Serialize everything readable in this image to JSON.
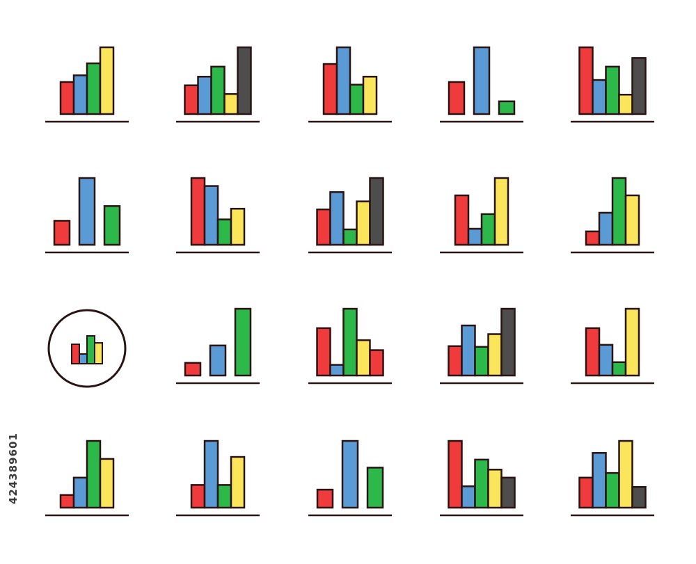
{
  "image_id_label": "424389601",
  "colors": {
    "red": "#ef3b3b",
    "blue": "#5b9bd5",
    "green": "#2db84a",
    "yellow": "#fbe55a",
    "dark": "#4d4d4d",
    "outline": "#2a1313"
  },
  "icons": [
    {
      "name": "icon-bar-chart-1",
      "bars": [
        {
          "c": "red",
          "v": 0.48
        },
        {
          "c": "blue",
          "v": 0.58
        },
        {
          "c": "green",
          "v": 0.76
        },
        {
          "c": "yellow",
          "v": 1.0
        }
      ]
    },
    {
      "name": "icon-bar-chart-2",
      "bars": [
        {
          "c": "red",
          "v": 0.43
        },
        {
          "c": "blue",
          "v": 0.56
        },
        {
          "c": "green",
          "v": 0.71
        },
        {
          "c": "yellow",
          "v": 0.3
        },
        {
          "c": "dark",
          "v": 1.0
        }
      ]
    },
    {
      "name": "icon-bar-chart-3",
      "bars": [
        {
          "c": "red",
          "v": 0.75
        },
        {
          "c": "blue",
          "v": 1.0
        },
        {
          "c": "green",
          "v": 0.44
        },
        {
          "c": "yellow",
          "v": 0.56
        }
      ]
    },
    {
      "name": "icon-bar-chart-4",
      "bars": [
        {
          "c": "red",
          "v": 0.48
        },
        {
          "c": "blue",
          "v": 1.0
        },
        {
          "c": "green",
          "v": 0.19
        }
      ]
    },
    {
      "name": "icon-bar-chart-5",
      "bars": [
        {
          "c": "red",
          "v": 1.0
        },
        {
          "c": "blue",
          "v": 0.51
        },
        {
          "c": "green",
          "v": 0.71
        },
        {
          "c": "yellow",
          "v": 0.29
        },
        {
          "c": "dark",
          "v": 0.84
        }
      ]
    },
    {
      "name": "icon-bar-chart-6",
      "bars": [
        {
          "c": "red",
          "v": 0.36
        },
        {
          "c": "blue",
          "v": 1.0
        },
        {
          "c": "green",
          "v": 0.58
        }
      ]
    },
    {
      "name": "icon-bar-chart-7",
      "bars": [
        {
          "c": "red",
          "v": 1.0
        },
        {
          "c": "blue",
          "v": 0.88
        },
        {
          "c": "green",
          "v": 0.38
        },
        {
          "c": "yellow",
          "v": 0.54
        }
      ]
    },
    {
      "name": "icon-bar-chart-8",
      "bars": [
        {
          "c": "red",
          "v": 0.53
        },
        {
          "c": "blue",
          "v": 0.79
        },
        {
          "c": "green",
          "v": 0.23
        },
        {
          "c": "yellow",
          "v": 0.65
        },
        {
          "c": "dark",
          "v": 1.0
        }
      ]
    },
    {
      "name": "icon-bar-chart-9",
      "bars": [
        {
          "c": "red",
          "v": 0.74
        },
        {
          "c": "blue",
          "v": 0.24
        },
        {
          "c": "green",
          "v": 0.46
        },
        {
          "c": "yellow",
          "v": 1.0
        }
      ]
    },
    {
      "name": "icon-bar-chart-10",
      "bars": [
        {
          "c": "red",
          "v": 0.2
        },
        {
          "c": "blue",
          "v": 0.48
        },
        {
          "c": "green",
          "v": 1.0
        },
        {
          "c": "yellow",
          "v": 0.74
        }
      ]
    },
    {
      "name": "icon-bar-chart-11",
      "circle": true,
      "bars": [
        {
          "c": "red",
          "v": 0.7
        },
        {
          "c": "blue",
          "v": 0.35
        },
        {
          "c": "green",
          "v": 1.0
        },
        {
          "c": "yellow",
          "v": 0.75
        }
      ]
    },
    {
      "name": "icon-bar-chart-12",
      "bars": [
        {
          "c": "red",
          "v": 0.19
        },
        {
          "c": "blue",
          "v": 0.45
        },
        {
          "c": "green",
          "v": 1.0
        }
      ]
    },
    {
      "name": "icon-bar-chart-13",
      "bars": [
        {
          "c": "red",
          "v": 0.71
        },
        {
          "c": "blue",
          "v": 0.16
        },
        {
          "c": "green",
          "v": 1.0
        },
        {
          "c": "yellow",
          "v": 0.53
        },
        {
          "c": "dark",
          "v": 0.0
        },
        {
          "c": "red",
          "v": 0.38
        }
      ]
    },
    {
      "name": "icon-bar-chart-14",
      "bars": [
        {
          "c": "red",
          "v": 0.44
        },
        {
          "c": "blue",
          "v": 0.75
        },
        {
          "c": "green",
          "v": 0.43
        },
        {
          "c": "yellow",
          "v": 0.62
        },
        {
          "c": "dark",
          "v": 1.0
        }
      ]
    },
    {
      "name": "icon-bar-chart-15",
      "bars": [
        {
          "c": "red",
          "v": 0.71
        },
        {
          "c": "blue",
          "v": 0.46
        },
        {
          "c": "green",
          "v": 0.2
        },
        {
          "c": "yellow",
          "v": 1.0
        }
      ]
    },
    {
      "name": "icon-bar-chart-16",
      "bars": [
        {
          "c": "red",
          "v": 0.19
        },
        {
          "c": "blue",
          "v": 0.45
        },
        {
          "c": "green",
          "v": 1.0
        },
        {
          "c": "yellow",
          "v": 0.73
        }
      ]
    },
    {
      "name": "icon-bar-chart-17",
      "bars": [
        {
          "c": "red",
          "v": 0.34
        },
        {
          "c": "blue",
          "v": 1.0
        },
        {
          "c": "green",
          "v": 0.34
        },
        {
          "c": "yellow",
          "v": 0.76
        }
      ]
    },
    {
      "name": "icon-bar-chart-18",
      "bars": [
        {
          "c": "red",
          "v": 0.27
        },
        {
          "c": "blue",
          "v": 1.0
        },
        {
          "c": "green",
          "v": 0.6
        }
      ]
    },
    {
      "name": "icon-bar-chart-19",
      "bars": [
        {
          "c": "red",
          "v": 1.0
        },
        {
          "c": "blue",
          "v": 0.32
        },
        {
          "c": "green",
          "v": 0.72
        },
        {
          "c": "yellow",
          "v": 0.57
        },
        {
          "c": "dark",
          "v": 0.45
        }
      ]
    },
    {
      "name": "icon-bar-chart-20",
      "bars": [
        {
          "c": "red",
          "v": 0.45
        },
        {
          "c": "blue",
          "v": 0.82
        },
        {
          "c": "green",
          "v": 0.52
        },
        {
          "c": "yellow",
          "v": 1.0
        },
        {
          "c": "dark",
          "v": 0.31
        }
      ]
    }
  ]
}
